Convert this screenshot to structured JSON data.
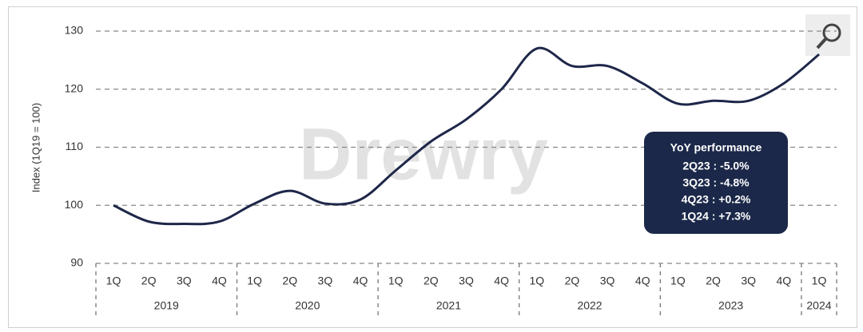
{
  "chart_data": {
    "type": "line",
    "y_label": "Index (1Q19 = 100)",
    "watermark": "Drewry",
    "categories": [
      "1Q",
      "2Q",
      "3Q",
      "4Q",
      "1Q",
      "2Q",
      "3Q",
      "4Q",
      "1Q",
      "2Q",
      "3Q",
      "4Q",
      "1Q",
      "2Q",
      "3Q",
      "4Q",
      "1Q",
      "2Q",
      "3Q",
      "4Q",
      "1Q"
    ],
    "x_groups": [
      "2019",
      "2020",
      "2021",
      "2022",
      "2023",
      "2024"
    ],
    "series": [
      {
        "color": "#1e2749",
        "values": [
          100,
          97.2,
          96.8,
          97.2,
          100.3,
          102.5,
          100.3,
          101,
          106,
          111,
          114.8,
          120,
          127,
          124,
          124,
          121,
          117.5,
          118,
          118,
          121,
          126
        ]
      }
    ],
    "ylim": [
      90,
      130
    ],
    "yticks": [
      90,
      100,
      110,
      120,
      130
    ],
    "grid": true,
    "annotation": {
      "title": "YoY performance",
      "lines": [
        "2Q23 : -5.0%",
        "3Q23 : -4.8%",
        "4Q23 : +0.2%",
        "1Q24 : +7.3%"
      ]
    }
  }
}
